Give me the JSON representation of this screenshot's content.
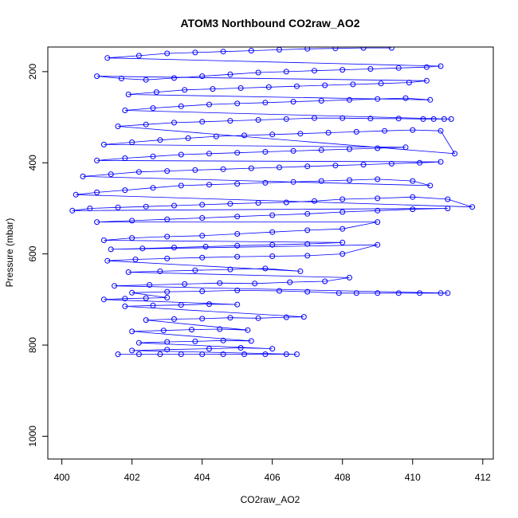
{
  "chart_data": {
    "type": "scatter",
    "title": "ATOM3 Northbound CO2raw_AO2",
    "xlabel": "CO2raw_AO2",
    "ylabel": "Pressure (mbar)",
    "xlim": [
      399.6,
      412.3
    ],
    "ylim": [
      1050,
      146
    ],
    "y_reversed": true,
    "x_ticks": [
      400,
      402,
      404,
      406,
      408,
      410,
      412
    ],
    "y_ticks": [
      200,
      400,
      600,
      800,
      1000
    ],
    "x_tick_labels": [
      "400",
      "402",
      "404",
      "406",
      "408",
      "410",
      "412"
    ],
    "y_tick_labels": [
      "200",
      "400",
      "600",
      "800",
      "1000"
    ],
    "marker": "open-circle",
    "connected_by_lines": true,
    "series_color": "#0000ff",
    "grid": false,
    "series": [
      {
        "points": [
          [
            401.6,
            820
          ],
          [
            402.2,
            820
          ],
          [
            402.8,
            820
          ],
          [
            403.4,
            820
          ],
          [
            404.0,
            820
          ],
          [
            404.6,
            820
          ],
          [
            405.2,
            820
          ],
          [
            405.8,
            820
          ],
          [
            406.4,
            820
          ],
          [
            406.7,
            820
          ],
          [
            402.0,
            812
          ],
          [
            403.0,
            810
          ],
          [
            404.2,
            808
          ],
          [
            405.1,
            806
          ],
          [
            406.0,
            808
          ],
          [
            402.2,
            795
          ],
          [
            403.0,
            793
          ],
          [
            403.8,
            792
          ],
          [
            404.6,
            790
          ],
          [
            405.4,
            791
          ],
          [
            402.0,
            770
          ],
          [
            402.9,
            768
          ],
          [
            403.7,
            766
          ],
          [
            404.5,
            765
          ],
          [
            405.3,
            767
          ],
          [
            402.4,
            745
          ],
          [
            403.2,
            743
          ],
          [
            404.0,
            742
          ],
          [
            404.8,
            740
          ],
          [
            405.6,
            741
          ],
          [
            406.4,
            739
          ],
          [
            406.9,
            738
          ],
          [
            401.8,
            715
          ],
          [
            402.6,
            713
          ],
          [
            403.4,
            712
          ],
          [
            404.2,
            710
          ],
          [
            405.0,
            711
          ],
          [
            401.2,
            700
          ],
          [
            401.8,
            698
          ],
          [
            402.4,
            697
          ],
          [
            403.0,
            696
          ],
          [
            402.0,
            685
          ],
          [
            403.0,
            683
          ],
          [
            404.0,
            682
          ],
          [
            405.0,
            680
          ],
          [
            406.2,
            681
          ],
          [
            407.0,
            683
          ],
          [
            407.9,
            686
          ],
          [
            408.4,
            686
          ],
          [
            409.0,
            686
          ],
          [
            409.6,
            686
          ],
          [
            410.2,
            686
          ],
          [
            410.8,
            686
          ],
          [
            411.0,
            686
          ],
          [
            401.5,
            670
          ],
          [
            402.5,
            668
          ],
          [
            403.5,
            666
          ],
          [
            404.5,
            664
          ],
          [
            405.5,
            665
          ],
          [
            406.5,
            662
          ],
          [
            407.5,
            660
          ],
          [
            408.2,
            652
          ],
          [
            401.9,
            640
          ],
          [
            402.8,
            638
          ],
          [
            403.8,
            636
          ],
          [
            404.8,
            634
          ],
          [
            405.8,
            632
          ],
          [
            406.8,
            638
          ],
          [
            401.3,
            615
          ],
          [
            402.1,
            612
          ],
          [
            403.0,
            610
          ],
          [
            404.0,
            608
          ],
          [
            405.0,
            606
          ],
          [
            406.0,
            605
          ],
          [
            407.0,
            604
          ],
          [
            408.0,
            600
          ],
          [
            409.0,
            580
          ],
          [
            401.4,
            590
          ],
          [
            402.3,
            588
          ],
          [
            403.2,
            586
          ],
          [
            404.1,
            584
          ],
          [
            405.0,
            582
          ],
          [
            406.0,
            580
          ],
          [
            407.0,
            578
          ],
          [
            408.0,
            575
          ],
          [
            401.2,
            570
          ],
          [
            402.0,
            565
          ],
          [
            403.0,
            562
          ],
          [
            404.0,
            560
          ],
          [
            405.0,
            556
          ],
          [
            406.0,
            552
          ],
          [
            407.0,
            548
          ],
          [
            408.0,
            545
          ],
          [
            409.0,
            530
          ],
          [
            401.0,
            530
          ],
          [
            402.0,
            527
          ],
          [
            403.0,
            524
          ],
          [
            404.0,
            521
          ],
          [
            405.0,
            518
          ],
          [
            406.0,
            515
          ],
          [
            407.0,
            512
          ],
          [
            408.0,
            508
          ],
          [
            409.0,
            505
          ],
          [
            410.0,
            502
          ],
          [
            411.0,
            500
          ],
          [
            400.3,
            505
          ],
          [
            400.8,
            500
          ],
          [
            401.6,
            498
          ],
          [
            402.4,
            496
          ],
          [
            403.2,
            494
          ],
          [
            404.0,
            492
          ],
          [
            404.8,
            490
          ],
          [
            405.6,
            488
          ],
          [
            406.4,
            487
          ],
          [
            407.2,
            484
          ],
          [
            408.0,
            480
          ],
          [
            409.0,
            478
          ],
          [
            410.0,
            475
          ],
          [
            411.0,
            480
          ],
          [
            411.7,
            497
          ],
          [
            400.4,
            470
          ],
          [
            401.0,
            465
          ],
          [
            401.8,
            460
          ],
          [
            402.6,
            455
          ],
          [
            403.4,
            450
          ],
          [
            404.2,
            448
          ],
          [
            405.0,
            446
          ],
          [
            405.8,
            444
          ],
          [
            406.6,
            442
          ],
          [
            407.4,
            440
          ],
          [
            408.2,
            438
          ],
          [
            409.0,
            436
          ],
          [
            410.0,
            440
          ],
          [
            410.5,
            450
          ],
          [
            400.6,
            430
          ],
          [
            401.4,
            425
          ],
          [
            402.2,
            420
          ],
          [
            403.0,
            418
          ],
          [
            403.8,
            416
          ],
          [
            404.6,
            414
          ],
          [
            405.4,
            412
          ],
          [
            406.2,
            410
          ],
          [
            407.0,
            408
          ],
          [
            407.8,
            406
          ],
          [
            408.6,
            404
          ],
          [
            409.4,
            402
          ],
          [
            410.2,
            400
          ],
          [
            410.8,
            398
          ],
          [
            401.0,
            395
          ],
          [
            401.8,
            390
          ],
          [
            402.6,
            386
          ],
          [
            403.4,
            382
          ],
          [
            404.2,
            380
          ],
          [
            405.0,
            378
          ],
          [
            405.8,
            376
          ],
          [
            406.6,
            374
          ],
          [
            407.4,
            372
          ],
          [
            408.2,
            370
          ],
          [
            409.0,
            368
          ],
          [
            409.8,
            366
          ],
          [
            401.2,
            360
          ],
          [
            402.0,
            355
          ],
          [
            402.8,
            350
          ],
          [
            403.6,
            346
          ],
          [
            404.4,
            342
          ],
          [
            405.2,
            340
          ],
          [
            406.0,
            338
          ],
          [
            406.8,
            336
          ],
          [
            407.6,
            334
          ],
          [
            408.4,
            332
          ],
          [
            409.2,
            330
          ],
          [
            410.0,
            328
          ],
          [
            410.8,
            330
          ],
          [
            411.2,
            380
          ],
          [
            401.6,
            320
          ],
          [
            402.4,
            316
          ],
          [
            403.2,
            312
          ],
          [
            404.0,
            310
          ],
          [
            404.8,
            308
          ],
          [
            405.6,
            306
          ],
          [
            406.4,
            304
          ],
          [
            407.2,
            302
          ],
          [
            408.0,
            302
          ],
          [
            408.8,
            303
          ],
          [
            409.6,
            303
          ],
          [
            410.3,
            304
          ],
          [
            410.6,
            304
          ],
          [
            410.9,
            304
          ],
          [
            411.1,
            304
          ],
          [
            401.8,
            285
          ],
          [
            402.6,
            280
          ],
          [
            403.4,
            276
          ],
          [
            404.2,
            272
          ],
          [
            405.0,
            270
          ],
          [
            405.8,
            268
          ],
          [
            406.6,
            266
          ],
          [
            407.4,
            264
          ],
          [
            408.2,
            262
          ],
          [
            409.0,
            260
          ],
          [
            409.8,
            258
          ],
          [
            410.5,
            262
          ],
          [
            401.9,
            250
          ],
          [
            402.7,
            245
          ],
          [
            403.5,
            240
          ],
          [
            404.3,
            238
          ],
          [
            405.1,
            236
          ],
          [
            405.9,
            234
          ],
          [
            406.7,
            232
          ],
          [
            407.5,
            230
          ],
          [
            408.3,
            228
          ],
          [
            409.1,
            226
          ],
          [
            409.9,
            224
          ],
          [
            410.4,
            220
          ],
          [
            401.0,
            210
          ],
          [
            401.7,
            215
          ],
          [
            402.4,
            218
          ],
          [
            403.2,
            214
          ],
          [
            404.0,
            210
          ],
          [
            404.8,
            206
          ],
          [
            405.6,
            202
          ],
          [
            406.4,
            200
          ],
          [
            407.2,
            198
          ],
          [
            408.0,
            196
          ],
          [
            408.8,
            194
          ],
          [
            409.6,
            192
          ],
          [
            410.4,
            190
          ],
          [
            410.8,
            188
          ],
          [
            401.3,
            170
          ],
          [
            402.2,
            165
          ],
          [
            403.0,
            160
          ],
          [
            403.8,
            158
          ],
          [
            404.6,
            156
          ],
          [
            405.4,
            154
          ],
          [
            406.2,
            152
          ],
          [
            407.0,
            150
          ],
          [
            407.8,
            149
          ],
          [
            408.6,
            148
          ],
          [
            409.4,
            148
          ]
        ]
      }
    ]
  }
}
